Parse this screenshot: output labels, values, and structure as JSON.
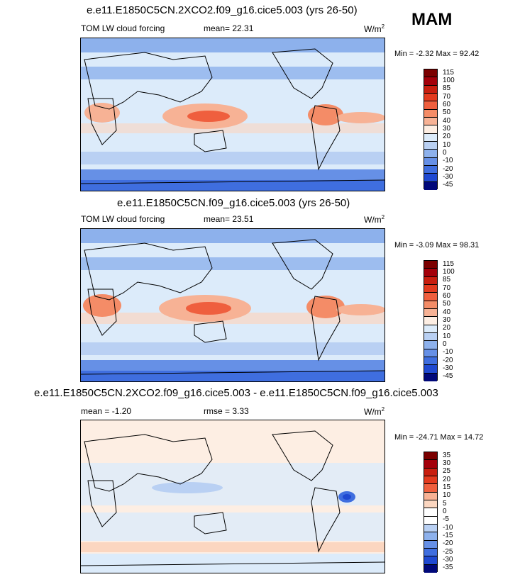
{
  "season": "MAM",
  "colors": {
    "positive": [
      "#fdeee3",
      "#fbd6c0",
      "#f7b295",
      "#f48c67",
      "#ef5f3e",
      "#e33a1e",
      "#c81e0f",
      "#a3000a",
      "#7b0000"
    ],
    "negative": [
      "#dcebfa",
      "#b9d0f3",
      "#8db1ec",
      "#6690e6",
      "#3f6edf",
      "#1f49d1",
      "#0f27a6",
      "#00087a"
    ],
    "land_line": "#000000"
  },
  "panels": [
    {
      "title": "e.e11.E1850C5CN.2XCO2.f09_g16.cice5.003 (yrs 26-50)",
      "variable": "TOM LW cloud forcing",
      "mean_label": "mean=",
      "mean": "22.31",
      "rmse_label": "",
      "rmse": "",
      "units": "W/m",
      "units_exp": "2",
      "min_label": "Min =",
      "min": "-2.32",
      "max_label": "Max =",
      "max": "92.42",
      "levels": [
        "115",
        "100",
        "85",
        "70",
        "60",
        "50",
        "40",
        "30",
        "20",
        "10",
        "0",
        "-10",
        "-20",
        "-30",
        "-45"
      ]
    },
    {
      "title": "e.e11.E1850C5CN.f09_g16.cice5.003 (yrs 26-50)",
      "variable": "TOM LW cloud forcing",
      "mean_label": "mean=",
      "mean": "23.51",
      "rmse_label": "",
      "rmse": "",
      "units": "W/m",
      "units_exp": "2",
      "min_label": "Min =",
      "min": "-3.09",
      "max_label": "Max =",
      "max": "98.31",
      "levels": [
        "115",
        "100",
        "85",
        "70",
        "60",
        "50",
        "40",
        "30",
        "20",
        "10",
        "0",
        "-10",
        "-20",
        "-30",
        "-45"
      ]
    },
    {
      "title": "e.e11.E1850C5CN.2XCO2.f09_g16.cice5.003 - e.e11.E1850C5CN.f09_g16.cice5.003",
      "variable": "",
      "mean_label": "mean =",
      "mean": "-1.20",
      "rmse_label": "rmse =",
      "rmse": "3.33",
      "units": "W/m",
      "units_exp": "2",
      "min_label": "Min =",
      "min": "-24.71",
      "max_label": "Max =",
      "max": "14.72",
      "levels": [
        "35",
        "30",
        "25",
        "20",
        "15",
        "10",
        "5",
        "0",
        "-5",
        "-10",
        "-15",
        "-20",
        "-25",
        "-30",
        "-35"
      ]
    }
  ],
  "chart_data": [
    {
      "type": "heatmap",
      "title": "e.e11.E1850C5CN.2XCO2.f09_g16.cice5.003 (yrs 26-50)",
      "variable": "TOM LW cloud forcing",
      "units": "W/m2",
      "mean": 22.31,
      "min": -2.32,
      "max": 92.42,
      "contour_levels": [
        -45,
        -30,
        -20,
        -10,
        0,
        10,
        20,
        30,
        40,
        50,
        60,
        70,
        85,
        100,
        115
      ]
    },
    {
      "type": "heatmap",
      "title": "e.e11.E1850C5CN.f09_g16.cice5.003 (yrs 26-50)",
      "variable": "TOM LW cloud forcing",
      "units": "W/m2",
      "mean": 23.51,
      "min": -3.09,
      "max": 98.31,
      "contour_levels": [
        -45,
        -30,
        -20,
        -10,
        0,
        10,
        20,
        30,
        40,
        50,
        60,
        70,
        85,
        100,
        115
      ]
    },
    {
      "type": "heatmap",
      "title": "e.e11.E1850C5CN.2XCO2.f09_g16.cice5.003 - e.e11.E1850C5CN.f09_g16.cice5.003",
      "units": "W/m2",
      "mean": -1.2,
      "rmse": 3.33,
      "min": -24.71,
      "max": 14.72,
      "contour_levels": [
        -35,
        -30,
        -25,
        -20,
        -15,
        -10,
        -5,
        0,
        5,
        10,
        15,
        20,
        25,
        30,
        35
      ]
    }
  ]
}
